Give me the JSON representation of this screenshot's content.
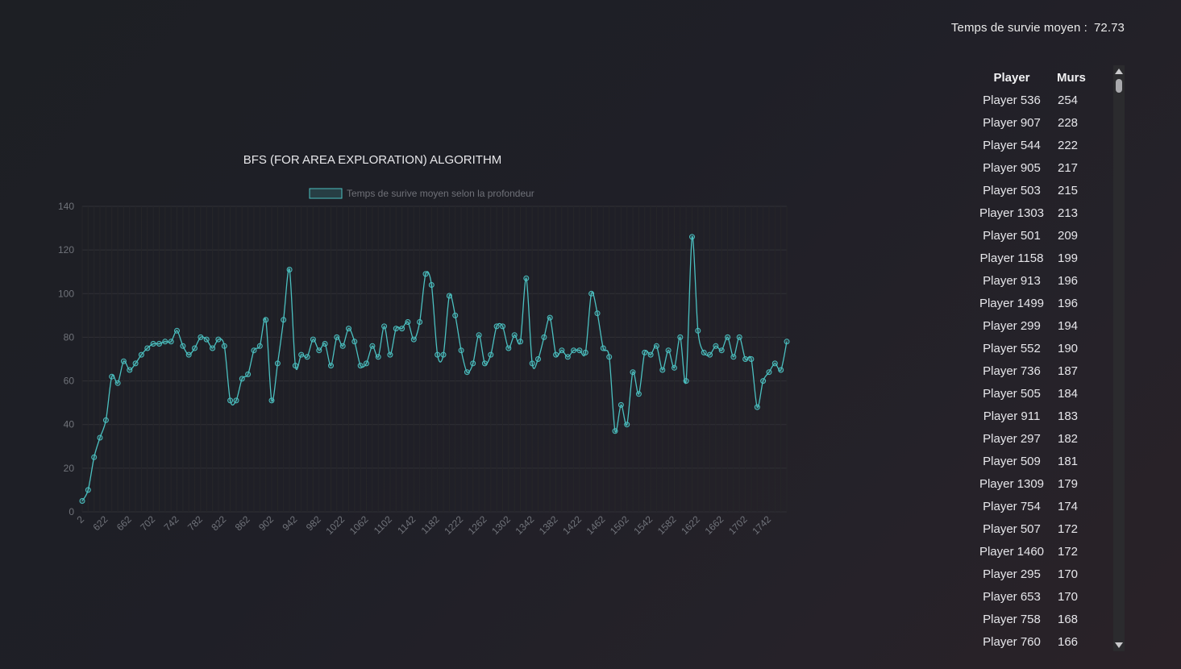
{
  "header": {
    "avg_label": "Temps de survie moyen :",
    "avg_value": "72.73"
  },
  "chart_data": {
    "type": "line",
    "title": "BFS (FOR AREA EXPLORATION) ALGORITHM",
    "series": [
      {
        "name": "Temps de surive moyen selon la profondeur",
        "color": "#4bc0c0"
      }
    ],
    "ylim": [
      0,
      140
    ],
    "yticks": [
      0,
      20,
      40,
      60,
      80,
      100,
      120,
      140
    ],
    "xtick_labels": [
      "2",
      "622",
      "662",
      "702",
      "742",
      "782",
      "822",
      "862",
      "902",
      "942",
      "982",
      "1022",
      "1062",
      "1102",
      "1142",
      "1182",
      "1222",
      "1262",
      "1302",
      "1342",
      "1382",
      "1422",
      "1462",
      "1502",
      "1542",
      "1582",
      "1622",
      "1662",
      "1702",
      "1742"
    ],
    "grid": true,
    "legend": "top",
    "values": [
      5,
      10,
      25,
      34,
      42,
      62,
      59,
      69,
      65,
      68,
      72,
      75,
      77,
      77,
      78,
      78,
      83,
      76,
      72,
      75,
      80,
      79,
      75,
      79,
      76,
      51,
      51,
      61,
      63,
      74,
      76,
      88,
      51,
      68,
      88,
      111,
      67,
      72,
      71,
      79,
      74,
      77,
      67,
      80,
      76,
      84,
      78,
      67,
      68,
      76,
      71,
      85,
      72,
      84,
      84,
      87,
      79,
      87,
      109,
      104,
      72,
      72,
      99,
      90,
      74,
      64,
      68,
      81,
      68,
      72,
      85,
      85,
      75,
      81,
      78,
      107,
      68,
      70,
      80,
      89,
      72,
      74,
      71,
      74,
      74,
      73,
      100,
      91,
      75,
      71,
      37,
      49,
      40,
      64,
      54,
      73,
      72,
      76,
      65,
      74,
      66,
      80,
      60,
      126,
      83,
      73,
      72,
      76,
      74,
      80,
      71,
      80,
      70,
      70,
      48,
      60,
      64,
      68,
      65,
      78
    ]
  },
  "leaderboard": {
    "headers": {
      "player": "Player",
      "walls": "Murs"
    },
    "rows": [
      {
        "player": "Player 536",
        "walls": "254"
      },
      {
        "player": "Player 907",
        "walls": "228"
      },
      {
        "player": "Player 544",
        "walls": "222"
      },
      {
        "player": "Player 905",
        "walls": "217"
      },
      {
        "player": "Player 503",
        "walls": "215"
      },
      {
        "player": "Player 1303",
        "walls": "213"
      },
      {
        "player": "Player 501",
        "walls": "209"
      },
      {
        "player": "Player 1158",
        "walls": "199"
      },
      {
        "player": "Player 913",
        "walls": "196"
      },
      {
        "player": "Player 1499",
        "walls": "196"
      },
      {
        "player": "Player 299",
        "walls": "194"
      },
      {
        "player": "Player 552",
        "walls": "190"
      },
      {
        "player": "Player 736",
        "walls": "187"
      },
      {
        "player": "Player 505",
        "walls": "184"
      },
      {
        "player": "Player 911",
        "walls": "183"
      },
      {
        "player": "Player 297",
        "walls": "182"
      },
      {
        "player": "Player 509",
        "walls": "181"
      },
      {
        "player": "Player 1309",
        "walls": "179"
      },
      {
        "player": "Player 754",
        "walls": "174"
      },
      {
        "player": "Player 507",
        "walls": "172"
      },
      {
        "player": "Player 1460",
        "walls": "172"
      },
      {
        "player": "Player 295",
        "walls": "170"
      },
      {
        "player": "Player 653",
        "walls": "170"
      },
      {
        "player": "Player 758",
        "walls": "168"
      },
      {
        "player": "Player 760",
        "walls": "166"
      }
    ]
  }
}
